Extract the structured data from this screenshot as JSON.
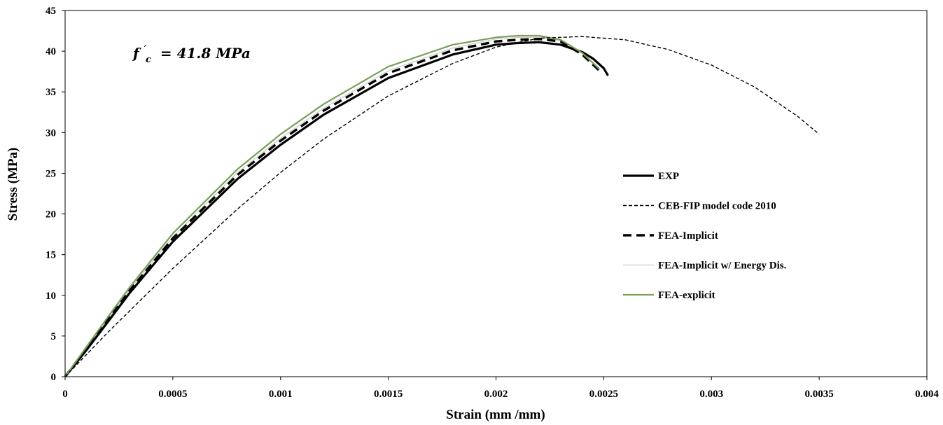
{
  "chart_data": {
    "type": "line",
    "title": "",
    "xlabel": "Strain (mm /mm)",
    "ylabel": "Stress (MPa)",
    "xlim": [
      0,
      0.004
    ],
    "ylim": [
      0,
      45
    ],
    "x_ticks": [
      0,
      0.0005,
      0.001,
      0.0015,
      0.002,
      0.0025,
      0.003,
      0.0035,
      0.004
    ],
    "x_tick_labels": [
      "0",
      "0.0005",
      "0.001",
      "0.0015",
      "0.002",
      "0.0025",
      "0.003",
      "0.0035",
      "0.004"
    ],
    "y_ticks": [
      0,
      5,
      10,
      15,
      20,
      25,
      30,
      35,
      40,
      45
    ],
    "y_tick_labels": [
      "0",
      "5",
      "10",
      "15",
      "20",
      "25",
      "30",
      "35",
      "40",
      "45"
    ],
    "grid": false,
    "legend_position": "right",
    "annotation": {
      "prefix": "f",
      "superscript": "′",
      "subscript": "c",
      "equation": "= 41.8 MPa"
    },
    "series": [
      {
        "name": "EXP",
        "color": "#000000",
        "style": "solid-thick",
        "x": [
          0,
          0.0001,
          0.0002,
          0.0003,
          0.0005,
          0.0008,
          0.001,
          0.0012,
          0.0015,
          0.0018,
          0.002,
          0.0021,
          0.0022,
          0.0023,
          0.0024,
          0.00245,
          0.0025,
          0.00252
        ],
        "y": [
          0,
          3.3,
          6.8,
          10.3,
          16.6,
          24.3,
          28.5,
          32.2,
          36.7,
          39.6,
          40.8,
          41.0,
          41.1,
          40.8,
          39.9,
          39.1,
          37.9,
          37.0
        ]
      },
      {
        "name": "CEB-FIP model code 2010",
        "color": "#000000",
        "style": "dashed-thin",
        "x": [
          0,
          0.0002,
          0.0005,
          0.0008,
          0.001,
          0.0012,
          0.0015,
          0.0018,
          0.002,
          0.0022,
          0.0024,
          0.0026,
          0.0028,
          0.003,
          0.0032,
          0.0034,
          0.0035
        ],
        "y": [
          0,
          5.5,
          13.3,
          20.6,
          25.1,
          29.2,
          34.5,
          38.5,
          40.5,
          41.6,
          41.8,
          41.4,
          40.2,
          38.3,
          35.6,
          32.0,
          29.8
        ]
      },
      {
        "name": "FEA-Implicit",
        "color": "#000000",
        "style": "dashed-thick",
        "x": [
          0,
          0.0001,
          0.0002,
          0.0003,
          0.0005,
          0.0008,
          0.001,
          0.0012,
          0.0015,
          0.0018,
          0.002,
          0.0021,
          0.0022,
          0.0023,
          0.0024,
          0.00248
        ],
        "y": [
          0,
          3.5,
          7.0,
          10.6,
          17.0,
          24.8,
          29.0,
          32.7,
          37.3,
          40.1,
          41.2,
          41.4,
          41.5,
          41.2,
          39.6,
          37.6
        ]
      },
      {
        "name": "FEA-Implicit w/ Energy Dis.",
        "color": "#cccccc",
        "style": "solid-thin",
        "x": [
          0,
          0.0001,
          0.0002,
          0.0003,
          0.0005,
          0.0008,
          0.001,
          0.0012,
          0.0015,
          0.0018,
          0.002,
          0.0021,
          0.0022,
          0.0023,
          0.0024,
          0.00248
        ],
        "y": [
          0,
          3.5,
          7.1,
          10.7,
          17.2,
          25.1,
          29.3,
          33.0,
          37.6,
          40.4,
          41.5,
          41.7,
          41.7,
          41.3,
          39.8,
          37.9
        ]
      },
      {
        "name": "FEA-explicit",
        "color": "#77a05a",
        "style": "solid",
        "x": [
          0,
          0.0001,
          0.0002,
          0.0003,
          0.0005,
          0.0008,
          0.001,
          0.0012,
          0.0015,
          0.0018,
          0.002,
          0.0021,
          0.0022,
          0.0023,
          0.0024,
          0.00248
        ],
        "y": [
          0,
          3.7,
          7.4,
          11.0,
          17.6,
          25.5,
          29.8,
          33.5,
          38.1,
          40.8,
          41.7,
          41.9,
          41.9,
          41.4,
          39.8,
          37.8
        ]
      }
    ]
  }
}
